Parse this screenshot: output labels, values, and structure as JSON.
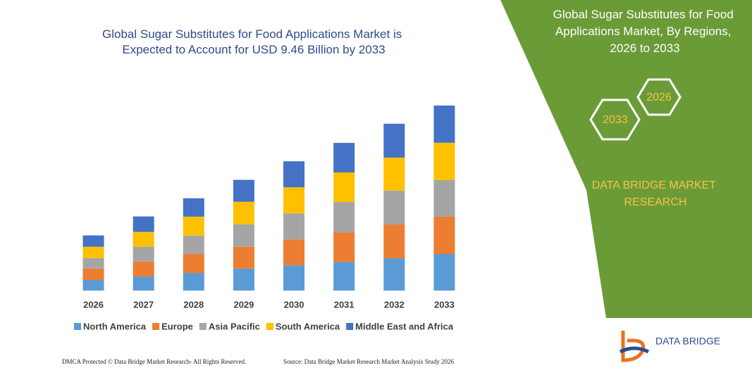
{
  "chart_data": {
    "type": "stacked-bar",
    "title": "Global Sugar Substitutes for Food Applications Market is Expected to Account for USD 9.46 Billion by 2033",
    "categories": [
      "2026",
      "2027",
      "2028",
      "2029",
      "2030",
      "2031",
      "2032",
      "2033"
    ],
    "series": [
      {
        "name": "North America",
        "color": "#5b9bd5",
        "values": [
          0.54,
          0.72,
          0.9,
          1.12,
          1.29,
          1.47,
          1.65,
          1.87
        ]
      },
      {
        "name": "Europe",
        "color": "#ed7d31",
        "values": [
          0.58,
          0.76,
          0.97,
          1.12,
          1.33,
          1.51,
          1.73,
          1.91
        ]
      },
      {
        "name": "Asia Pacific",
        "color": "#a5a5a5",
        "values": [
          0.54,
          0.76,
          0.94,
          1.15,
          1.33,
          1.55,
          1.73,
          1.87
        ]
      },
      {
        "name": "South America",
        "color": "#ffc000",
        "values": [
          0.58,
          0.76,
          0.97,
          1.15,
          1.33,
          1.51,
          1.69,
          1.91
        ]
      },
      {
        "name": "Middle East and Africa",
        "color": "#4472c4",
        "values": [
          0.58,
          0.79,
          0.94,
          1.12,
          1.33,
          1.51,
          1.73,
          1.9
        ]
      }
    ],
    "legend": "bottom"
  },
  "panel": {
    "title": "Global Sugar Substitutes for Food Applications Market, By Regions, 2026 to 2033",
    "hex_end": "2033",
    "hex_start": "2026",
    "brand": "DATA BRIDGE MARKET RESEARCH",
    "logo": "DATA BRIDGE"
  },
  "footer": {
    "left": "DMCA Protected © Data Bridge Market Research- All Rights Reserved.",
    "right": "Source: Data Bridge Market Research Market Analysis Study 2026"
  }
}
